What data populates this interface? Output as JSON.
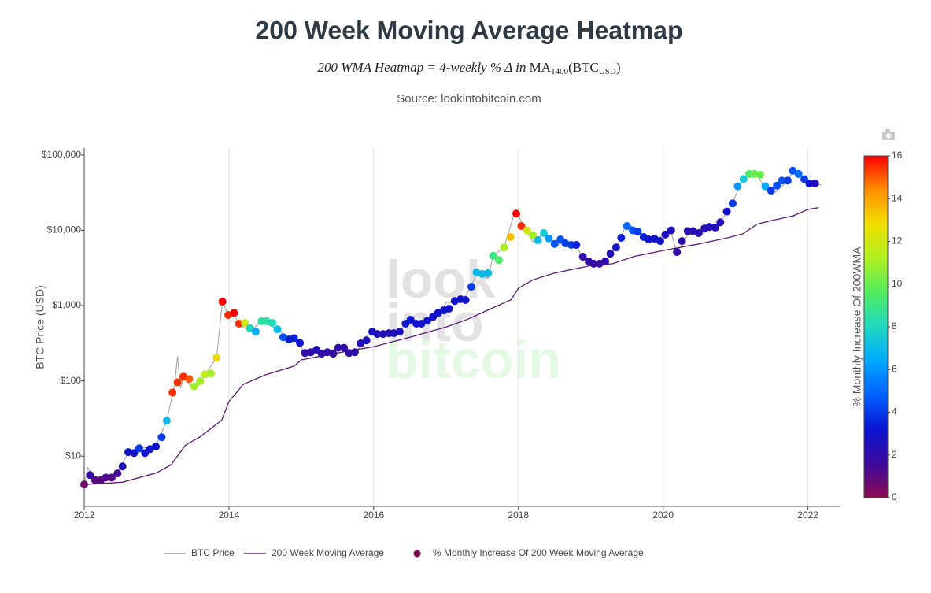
{
  "chart_data": {
    "type": "scatter",
    "title": "200 Week Moving Average Heatmap",
    "subtitle_parts": [
      "200 WMA Heatmap = 4-weekly % Δ in ",
      "MA",
      "1400",
      "(BTC",
      "USD",
      ")"
    ],
    "source": "Source: lookintobitcoin.com",
    "watermark": [
      "look",
      "into",
      "bitcoin"
    ],
    "y_label": "BTC Price (USD)",
    "log_y": true,
    "xgrid": true,
    "legend": "bottom",
    "xlim": [
      2012,
      2022.45
    ],
    "xticks": [
      2012,
      2014,
      2016,
      2018,
      2020,
      2022
    ],
    "ylim": [
      2.15,
      124000
    ],
    "yticks": [
      {
        "value": 10,
        "label": "$10"
      },
      {
        "value": 100,
        "label": "$100"
      },
      {
        "value": 1000,
        "label": "$1,000"
      },
      {
        "value": 10000,
        "label": "$10,000"
      },
      {
        "value": 100000,
        "label": "$100,000"
      }
    ],
    "colorbar": {
      "title": "% Monthly Increase Of 200WMA",
      "clim": [
        0,
        16
      ],
      "ticks": [
        0,
        2,
        4,
        6,
        8,
        10,
        12,
        14,
        16
      ],
      "colors": [
        "#8b0a50",
        "#3c0a9e",
        "#0a14d0",
        "#0060ff",
        "#00a8ff",
        "#20d8c0",
        "#50ec60",
        "#b0f020",
        "#f0e000",
        "#ff9000",
        "#ff0000"
      ]
    },
    "series": [
      {
        "name": "BTC Price",
        "type": "line",
        "color": "#a0a0a0",
        "x": [
          2012.0,
          2012.05,
          2012.15,
          2012.3,
          2012.46,
          2012.61,
          2012.76,
          2012.99,
          2013.14,
          2013.25,
          2013.29,
          2013.33,
          2013.37,
          2013.52,
          2013.67,
          2013.83,
          2013.91,
          2013.99,
          2014.06,
          2014.14,
          2014.29,
          2014.45,
          2014.67,
          2014.83,
          2014.98,
          2015.05,
          2015.28,
          2015.51,
          2015.74,
          2015.83,
          2015.9,
          2016.05,
          2016.36,
          2016.51,
          2016.66,
          2016.96,
          2017.0,
          2017.2,
          2017.35,
          2017.42,
          2017.58,
          2017.65,
          2017.8,
          2017.96,
          2018.1,
          2018.2,
          2018.35,
          2018.5,
          2018.8,
          2018.9,
          2019.0,
          2019.2,
          2019.35,
          2019.5,
          2019.65,
          2019.88,
          2020.1,
          2020.19,
          2020.34,
          2020.56,
          2020.79,
          2020.96,
          2021.1,
          2021.28,
          2021.41,
          2021.55,
          2021.72,
          2021.8,
          2021.95,
          2022.1,
          2022.18
        ],
        "values": [
          4.2,
          7,
          4.8,
          5.2,
          5.9,
          11.3,
          12.7,
          13.4,
          29.6,
          90,
          213,
          80,
          114,
          75,
          122,
          203,
          1150,
          750,
          800,
          576,
          450,
          620,
          485,
          355,
          320,
          220,
          230,
          275,
          235,
          300,
          400,
          420,
          450,
          700,
          576,
          900,
          1100,
          1100,
          1780,
          2770,
          2300,
          4600,
          5900,
          19000,
          10000,
          7000,
          9200,
          6600,
          6400,
          4000,
          3600,
          3870,
          5930,
          12500,
          9600,
          7300,
          10000,
          5000,
          8800,
          9200,
          12800,
          23000,
          50000,
          58000,
          36000,
          32000,
          45000,
          64000,
          48000,
          42000,
          40000
        ]
      },
      {
        "name": "200 Week Moving Average",
        "type": "line",
        "color": "#5b1a72",
        "x": [
          2012.0,
          2012.53,
          2013.0,
          2013.2,
          2013.4,
          2013.6,
          2013.9,
          2014.0,
          2014.2,
          2014.5,
          2014.9,
          2015.0,
          2015.5,
          2016.0,
          2016.5,
          2017.0,
          2017.3,
          2017.6,
          2017.9,
          2018.0,
          2018.2,
          2018.5,
          2019.0,
          2019.3,
          2019.6,
          2020.0,
          2020.5,
          2020.9,
          2021.1,
          2021.3,
          2021.5,
          2021.8,
          2022.0,
          2022.15
        ],
        "values": [
          4.2,
          4.5,
          6.0,
          7.7,
          14,
          18,
          30,
          53,
          90,
          120,
          157,
          190,
          235,
          285,
          380,
          520,
          660,
          890,
          1200,
          1700,
          2200,
          2700,
          3400,
          3600,
          4500,
          5400,
          6600,
          8000,
          9000,
          12100,
          13500,
          15600,
          19000,
          20000
        ]
      },
      {
        "name": "% Monthly Increase Of 200 Week Moving Average",
        "type": "scatter",
        "color": "#800050",
        "x": [
          2012.0,
          2012.08,
          2012.15,
          2012.23,
          2012.3,
          2012.38,
          2012.46,
          2012.53,
          2012.61,
          2012.69,
          2012.76,
          2012.84,
          2012.91,
          2012.99,
          2013.07,
          2013.14,
          2013.22,
          2013.29,
          2013.37,
          2013.45,
          2013.52,
          2013.6,
          2013.67,
          2013.75,
          2013.83,
          2013.91,
          2013.99,
          2014.07,
          2014.14,
          2014.22,
          2014.29,
          2014.37,
          2014.45,
          2014.52,
          2014.6,
          2014.67,
          2014.75,
          2014.83,
          2014.9,
          2014.98,
          2015.05,
          2015.13,
          2015.21,
          2015.28,
          2015.36,
          2015.44,
          2015.51,
          2015.59,
          2015.66,
          2015.74,
          2015.82,
          2015.9,
          2015.98,
          2016.05,
          2016.13,
          2016.21,
          2016.28,
          2016.36,
          2016.44,
          2016.51,
          2016.59,
          2016.66,
          2016.74,
          2016.82,
          2016.89,
          2016.97,
          2017.04,
          2017.12,
          2017.2,
          2017.27,
          2017.35,
          2017.42,
          2017.5,
          2017.58,
          2017.65,
          2017.73,
          2017.8,
          2017.89,
          2017.97,
          2018.04,
          2018.12,
          2018.2,
          2018.27,
          2018.35,
          2018.42,
          2018.5,
          2018.58,
          2018.65,
          2018.73,
          2018.8,
          2018.89,
          2018.97,
          2019.04,
          2019.12,
          2019.2,
          2019.27,
          2019.35,
          2019.42,
          2019.5,
          2019.58,
          2019.65,
          2019.73,
          2019.8,
          2019.88,
          2019.96,
          2020.03,
          2020.11,
          2020.19,
          2020.26,
          2020.34,
          2020.41,
          2020.49,
          2020.57,
          2020.64,
          2020.72,
          2020.79,
          2020.88,
          2020.96,
          2021.03,
          2021.11,
          2021.19,
          2021.26,
          2021.34,
          2021.41,
          2021.49,
          2021.57,
          2021.64,
          2021.72,
          2021.79,
          2021.87,
          2021.95,
          2022.02,
          2022.1
        ],
        "values": [
          4.2,
          5.6,
          4.8,
          4.8,
          5.2,
          5.2,
          5.9,
          7.3,
          11.3,
          11,
          12.7,
          11,
          12.4,
          13.4,
          17.8,
          29.6,
          70,
          96,
          114,
          106,
          85,
          99,
          122,
          125,
          203,
          1130,
          750,
          800,
          576,
          590,
          500,
          450,
          620,
          620,
          590,
          485,
          380,
          355,
          370,
          320,
          235,
          240,
          260,
          230,
          240,
          230,
          275,
          275,
          235,
          240,
          315,
          345,
          450,
          420,
          420,
          430,
          430,
          450,
          576,
          650,
          576,
          576,
          630,
          710,
          800,
          865,
          910,
          1150,
          1215,
          1185,
          1780,
          2770,
          2630,
          2700,
          4600,
          4040,
          5930,
          8150,
          16700,
          11400,
          10000,
          8540,
          7400,
          9200,
          7800,
          6600,
          7570,
          6720,
          6400,
          6400,
          4460,
          3870,
          3600,
          3600,
          3870,
          4890,
          5930,
          7950,
          11400,
          10000,
          9600,
          8150,
          7570,
          7750,
          7200,
          8790,
          10000,
          5150,
          7200,
          9800,
          9800,
          9200,
          10600,
          11100,
          10900,
          12800,
          17800,
          22800,
          38500,
          47900,
          56200,
          56200,
          54900,
          38500,
          33700,
          39300,
          45800,
          45800,
          62000,
          56200,
          47900,
          42000,
          42000
        ],
        "color_values": [
          0.5,
          2,
          1,
          1,
          1.2,
          1.2,
          1.5,
          2.5,
          3,
          3,
          4,
          3,
          3,
          3,
          4,
          7,
          15.5,
          15.5,
          15.5,
          15,
          11,
          11,
          11.5,
          11,
          13,
          16,
          15.5,
          16,
          15.5,
          12,
          8,
          6.5,
          8.5,
          8.5,
          8,
          7,
          4.5,
          3.5,
          3.5,
          3,
          2,
          2,
          2.5,
          2,
          2,
          1.8,
          2,
          2,
          2,
          2,
          2.5,
          2.5,
          2.8,
          2.5,
          2.5,
          2.5,
          2.5,
          2.8,
          3,
          3.2,
          3,
          3,
          3,
          3,
          3,
          3,
          3,
          3,
          3,
          3,
          4,
          7,
          7,
          7,
          9,
          9.5,
          11,
          13.5,
          16,
          15.5,
          12,
          11,
          7,
          7.5,
          6,
          4.5,
          4.5,
          4,
          4,
          3.5,
          2,
          2,
          1.8,
          1.8,
          2,
          2.5,
          2.8,
          3.5,
          5,
          4.5,
          4,
          3.5,
          3,
          3,
          3,
          2.5,
          2.5,
          2,
          2,
          2.2,
          2.2,
          2.2,
          2.3,
          2.5,
          2.5,
          2.5,
          3,
          4,
          6,
          7.5,
          9.5,
          10,
          10,
          6.5,
          4,
          4.5,
          4.5,
          4,
          4.5,
          5,
          4,
          3,
          2.5
        ]
      }
    ]
  }
}
